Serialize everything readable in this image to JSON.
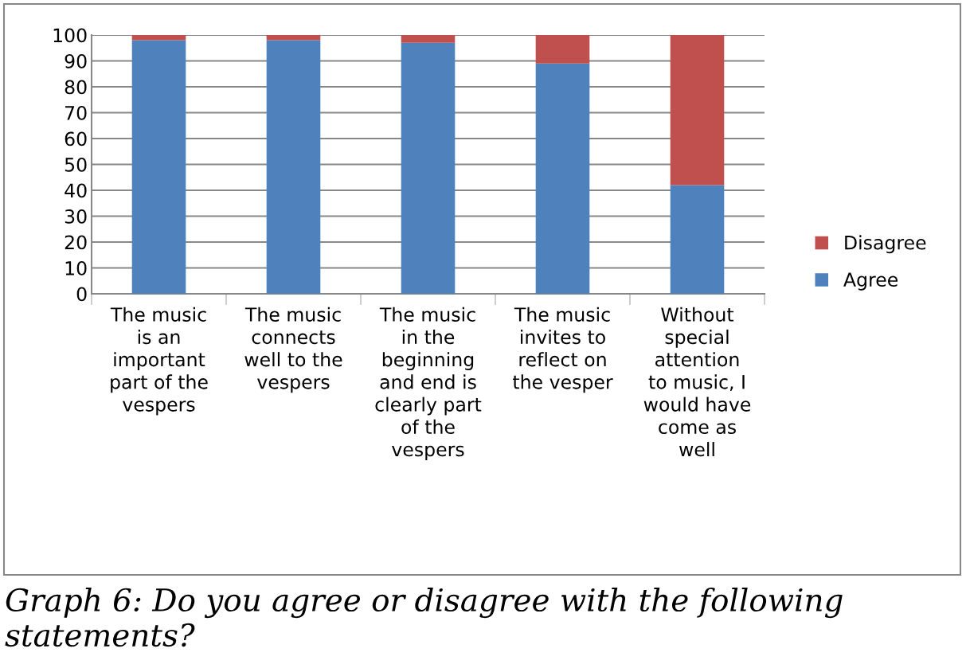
{
  "chart_data": {
    "type": "bar",
    "stacked": true,
    "categories": [
      "The music\nis an\nimportant\npart of the\nvespers",
      "The music\nconnects\nwell to the\nvespers",
      "The music\nin the\nbeginning\nand end is\nclearly part\nof the\nvespers",
      "The music\ninvites to\nreflect on\nthe vesper",
      "Without\nspecial\nattention\nto music, I\nwould have\ncome as\nwell"
    ],
    "series": [
      {
        "name": "Agree",
        "color": "#4f81bd",
        "values": [
          98,
          98,
          97,
          89,
          42
        ]
      },
      {
        "name": "Disagree",
        "color": "#c0504d",
        "values": [
          2,
          2,
          3,
          11,
          58
        ]
      }
    ],
    "ylim": [
      0,
      100
    ],
    "yticks": [
      0,
      10,
      20,
      30,
      40,
      50,
      60,
      70,
      80,
      90,
      100
    ],
    "grid": "y",
    "legend": "right",
    "annotations": [
      "Graph 6: Do you agree or disagree with the following statements?"
    ]
  }
}
